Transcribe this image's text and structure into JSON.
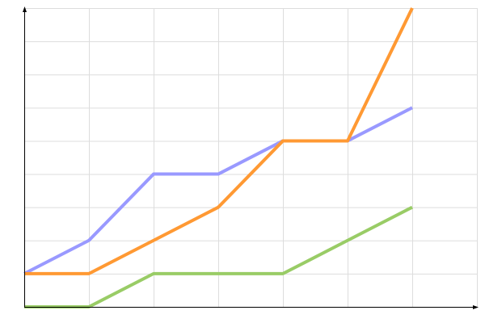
{
  "chart_data": {
    "type": "line",
    "title": "",
    "xlabel": "",
    "ylabel": "",
    "x": [
      0,
      1,
      2,
      3,
      4,
      5,
      6
    ],
    "xlim": [
      0,
      7
    ],
    "ylim": [
      0,
      9
    ],
    "grid": true,
    "series": [
      {
        "color": "#9999ff",
        "values": [
          1,
          2,
          4,
          4,
          5,
          5,
          6
        ]
      },
      {
        "color": "#ff9933",
        "values": [
          1,
          1,
          2,
          3,
          5,
          5,
          9
        ]
      },
      {
        "color": "#99cc66",
        "values": [
          0,
          0,
          1,
          1,
          1,
          2,
          3
        ]
      }
    ],
    "axis_color": "#000000",
    "grid_color": "#dddddd"
  }
}
